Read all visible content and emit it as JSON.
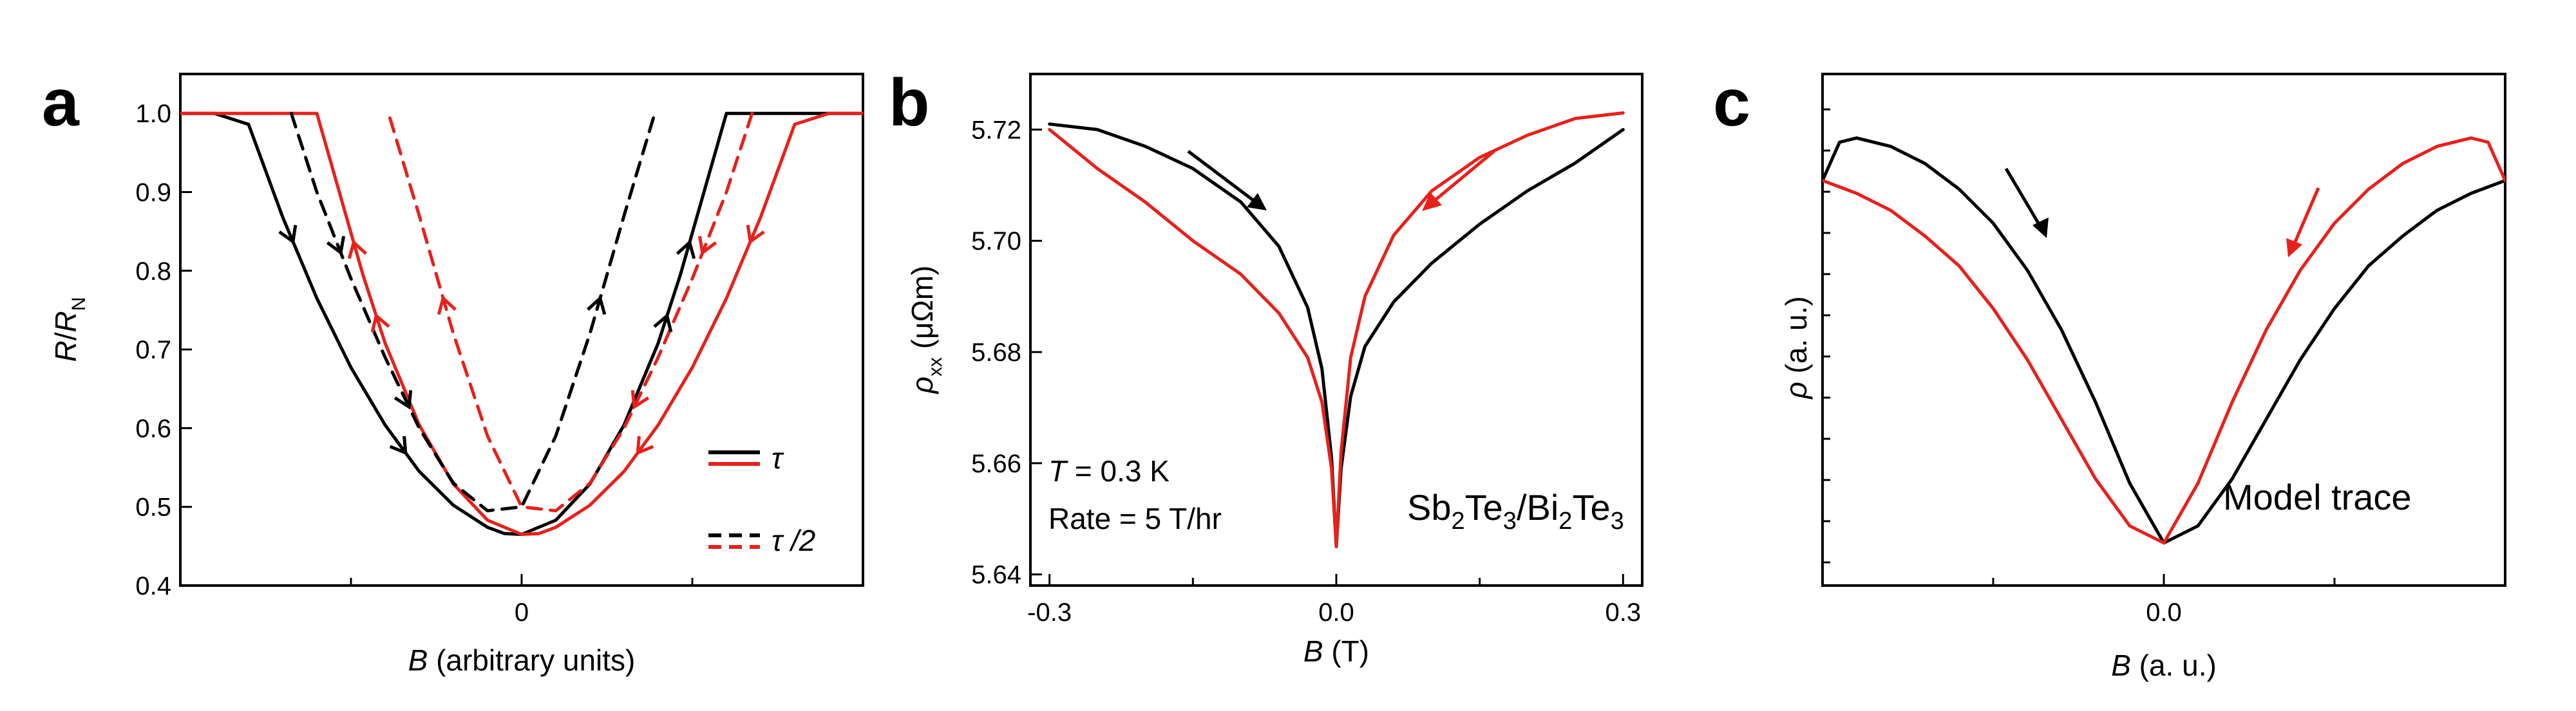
{
  "chart_data": [
    {
      "panel": "a",
      "type": "line",
      "xlabel_italic": "B",
      "xlabel_rest": " (arbitrary units)",
      "ylabel_italic_num": "R",
      "ylabel_sep": "/",
      "ylabel_italic_den": "R",
      "ylabel_sub": "N",
      "xlim": [
        -2.0,
        2.0
      ],
      "ylim": [
        0.4,
        1.05
      ],
      "x_ticks": [
        0
      ],
      "x_tick_labels": [
        "0"
      ],
      "y_ticks": [
        0.4,
        0.5,
        0.6,
        0.7,
        0.8,
        0.9,
        1.0
      ],
      "y_tick_labels": [
        "0.4",
        "0.5",
        "0.6",
        "0.7",
        "0.8",
        "0.9",
        "1.0"
      ],
      "legend": {
        "position": "lower-right",
        "entries": [
          {
            "label": "τ",
            "style": "solid",
            "colors": [
              "#000000",
              "#e8201a"
            ]
          },
          {
            "label": "τ /2",
            "style": "dashed",
            "colors": [
              "#000000",
              "#e8201a"
            ]
          }
        ]
      },
      "series": [
        {
          "name": "τ down-sweep",
          "color": "#000000",
          "style": "solid",
          "x": [
            -2.0,
            -1.8,
            -1.6,
            -1.4,
            -1.2,
            -1.0,
            -0.8,
            -0.6,
            -0.4,
            -0.2,
            -0.1,
            0.0,
            0.2,
            0.4,
            0.6,
            0.8,
            0.93,
            1.2,
            1.5,
            2.0
          ],
          "y": [
            1.0,
            1.0,
            0.986,
            0.868,
            0.765,
            0.677,
            0.604,
            0.545,
            0.502,
            0.474,
            0.466,
            0.465,
            0.483,
            0.529,
            0.604,
            0.708,
            0.795,
            1.0,
            1.0,
            1.0
          ],
          "arrows": "down-right / up-right"
        },
        {
          "name": "τ up-sweep",
          "color": "#e8201a",
          "style": "solid",
          "x": [
            2.0,
            1.8,
            1.6,
            1.4,
            1.2,
            1.0,
            0.8,
            0.6,
            0.4,
            0.2,
            0.1,
            0.0,
            -0.2,
            -0.4,
            -0.6,
            -0.8,
            -0.93,
            -1.2,
            -1.5,
            -2.0
          ],
          "y": [
            1.0,
            1.0,
            0.986,
            0.868,
            0.765,
            0.677,
            0.604,
            0.545,
            0.502,
            0.474,
            0.466,
            0.465,
            0.483,
            0.529,
            0.604,
            0.708,
            0.795,
            1.0,
            1.0,
            1.0
          ]
        },
        {
          "name": "τ/2 down-sweep",
          "color": "#000000",
          "style": "dashed",
          "x": [
            -1.35,
            -1.2,
            -1.0,
            -0.8,
            -0.6,
            -0.4,
            -0.2,
            0.0,
            0.2,
            0.4,
            0.6,
            0.78
          ],
          "y": [
            1.0,
            0.9,
            0.79,
            0.69,
            0.6,
            0.53,
            0.495,
            0.5,
            0.59,
            0.72,
            0.87,
            1.0
          ]
        },
        {
          "name": "τ/2 up-sweep",
          "color": "#e8201a",
          "style": "dashed",
          "x": [
            1.35,
            1.2,
            1.0,
            0.8,
            0.6,
            0.4,
            0.2,
            0.0,
            -0.2,
            -0.4,
            -0.6,
            -0.78
          ],
          "y": [
            1.0,
            0.9,
            0.79,
            0.69,
            0.6,
            0.53,
            0.495,
            0.5,
            0.59,
            0.72,
            0.87,
            1.0
          ]
        }
      ]
    },
    {
      "panel": "b",
      "type": "line",
      "xlabel_italic": "B",
      "xlabel_rest": " (T)",
      "ylabel_italic": "ρ",
      "ylabel_sub": "xx",
      "ylabel_rest": " (μΩm)",
      "xlim": [
        -0.32,
        0.32
      ],
      "ylim": [
        5.638,
        5.73
      ],
      "x_ticks": [
        -0.3,
        0.0,
        0.3
      ],
      "x_tick_labels": [
        "-0.3",
        "0.0",
        "0.3"
      ],
      "y_ticks": [
        5.64,
        5.66,
        5.68,
        5.7,
        5.72
      ],
      "y_tick_labels": [
        "5.64",
        "5.66",
        "5.68",
        "5.70",
        "5.72"
      ],
      "annotation_line1_italic": "T",
      "annotation_line1_rest": " = 0.3 K",
      "annotation_line2": "Rate = 5 T/hr",
      "material": {
        "p1": "Sb",
        "s1": "2",
        "p2": "Te",
        "s2": "3",
        "p3": "/Bi",
        "s3": "2",
        "p4": "Te",
        "s4": "3"
      },
      "series": [
        {
          "name": "down-sweep",
          "color": "#000000",
          "x": [
            -0.3,
            -0.25,
            -0.2,
            -0.15,
            -0.1,
            -0.06,
            -0.03,
            -0.015,
            -0.005,
            0.0,
            0.005,
            0.015,
            0.03,
            0.06,
            0.1,
            0.15,
            0.2,
            0.25,
            0.3
          ],
          "y": [
            5.721,
            5.72,
            5.717,
            5.713,
            5.707,
            5.699,
            5.688,
            5.677,
            5.661,
            5.645,
            5.659,
            5.672,
            5.681,
            5.689,
            5.696,
            5.703,
            5.709,
            5.714,
            5.72
          ]
        },
        {
          "name": "up-sweep",
          "color": "#e8201a",
          "x": [
            0.3,
            0.25,
            0.2,
            0.15,
            0.1,
            0.06,
            0.03,
            0.015,
            0.005,
            0.0,
            -0.005,
            -0.015,
            -0.03,
            -0.06,
            -0.1,
            -0.15,
            -0.2,
            -0.25,
            -0.3
          ],
          "y": [
            5.723,
            5.722,
            5.719,
            5.715,
            5.709,
            5.701,
            5.69,
            5.679,
            5.662,
            5.645,
            5.659,
            5.671,
            5.679,
            5.687,
            5.694,
            5.7,
            5.707,
            5.713,
            5.72
          ]
        }
      ]
    },
    {
      "panel": "c",
      "type": "line",
      "xlabel_italic": "B",
      "xlabel_rest": " (a. u.)",
      "ylabel_italic": "ρ",
      "ylabel_rest": " (a. u.)",
      "xlim": [
        -1.0,
        1.0
      ],
      "ylim": [
        -0.1,
        1.1
      ],
      "x_ticks": [
        0.0
      ],
      "x_tick_labels": [
        "0.0"
      ],
      "annotation": "Model trace",
      "series": [
        {
          "name": "down-sweep",
          "color": "#000000",
          "x": [
            -1.0,
            -0.95,
            -0.9,
            -0.8,
            -0.7,
            -0.6,
            -0.5,
            -0.4,
            -0.3,
            -0.2,
            -0.1,
            0.0,
            0.1,
            0.2,
            0.3,
            0.4,
            0.5,
            0.6,
            0.7,
            0.8,
            0.9,
            1.0
          ],
          "y": [
            0.85,
            0.94,
            0.95,
            0.93,
            0.89,
            0.83,
            0.75,
            0.64,
            0.5,
            0.33,
            0.14,
            0.0,
            0.04,
            0.15,
            0.29,
            0.43,
            0.55,
            0.65,
            0.72,
            0.78,
            0.82,
            0.85
          ]
        },
        {
          "name": "up-sweep",
          "color": "#e8201a",
          "x": [
            1.0,
            0.95,
            0.9,
            0.8,
            0.7,
            0.6,
            0.5,
            0.4,
            0.3,
            0.2,
            0.1,
            0.0,
            -0.1,
            -0.2,
            -0.3,
            -0.4,
            -0.5,
            -0.6,
            -0.7,
            -0.8,
            -0.9,
            -1.0
          ],
          "y": [
            0.85,
            0.94,
            0.95,
            0.93,
            0.89,
            0.83,
            0.75,
            0.64,
            0.5,
            0.33,
            0.14,
            0.0,
            0.04,
            0.15,
            0.29,
            0.43,
            0.55,
            0.65,
            0.72,
            0.78,
            0.82,
            0.85
          ]
        }
      ]
    }
  ]
}
